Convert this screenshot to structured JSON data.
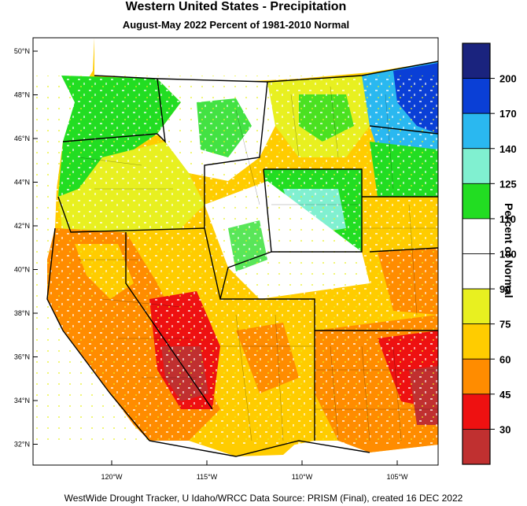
{
  "title": "Western United States - Precipitation",
  "subtitle": "August-May 2022  Percent of 1981-2010 Normal",
  "credit": "WestWide Drought Tracker, U Idaho/WRCC Data Source: PRISM (Final), created 16 DEC 2022",
  "colorbar": {
    "title": "Percent of Normal",
    "levels": [
      {
        "label": "",
        "color": "#1a237e"
      },
      {
        "label": "200",
        "color": "#0a3fd6"
      },
      {
        "label": "170",
        "color": "#2ab8f0"
      },
      {
        "label": "140",
        "color": "#80f0d0"
      },
      {
        "label": "125",
        "color": "#22dd22"
      },
      {
        "label": "110",
        "color": "#ffffff"
      },
      {
        "label": "100",
        "color": "#ffffff"
      },
      {
        "label": "90",
        "color": "#e8f020"
      },
      {
        "label": "75",
        "color": "#ffcc00"
      },
      {
        "label": "60",
        "color": "#ff8c00"
      },
      {
        "label": "45",
        "color": "#ee1111"
      },
      {
        "label": "30",
        "color": "#c03030"
      }
    ]
  },
  "latitudes": [
    "50°N",
    "48°N",
    "46°N",
    "44°N",
    "42°N",
    "40°N",
    "38°N",
    "36°N",
    "34°N",
    "32°N"
  ],
  "longitudes": [
    "120°W",
    "115°W",
    "110°W",
    "105°W"
  ],
  "regions": [
    {
      "name": "pacific-northwest-wet",
      "color": "#22dd22"
    },
    {
      "name": "northern-plains-very-wet",
      "color": "#0a3fd6"
    },
    {
      "name": "montana-wet",
      "color": "#2ab8f0"
    },
    {
      "name": "wyoming-near-normal",
      "color": "#80f0d0"
    },
    {
      "name": "california-dry",
      "color": "#ff8c00"
    },
    {
      "name": "southwest-extremely-dry",
      "color": "#c03030"
    }
  ]
}
